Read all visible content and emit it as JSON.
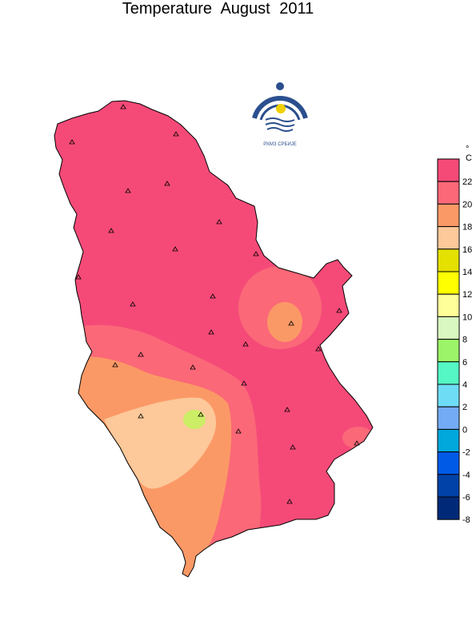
{
  "title": "Temperature  August  2011",
  "logo_text": "РХМЗ СРБИЈЕ",
  "legend": {
    "unit": "°C",
    "ticks": [
      "22",
      "20",
      "18",
      "16",
      "14",
      "12",
      "10",
      "8",
      "6",
      "4",
      "2",
      "0",
      "-2",
      "-4",
      "-6",
      "-8"
    ],
    "colors": [
      "#f54a78",
      "#fb6878",
      "#fb9966",
      "#fdc89a",
      "#e4e000",
      "#ffff00",
      "#ffff99",
      "#d9f7c0",
      "#9cf568",
      "#55f7c4",
      "#6fdcf5",
      "#74abf5",
      "#00a8dc",
      "#005ae6",
      "#0042a8",
      "#002a78"
    ]
  },
  "stations_count": 28
}
